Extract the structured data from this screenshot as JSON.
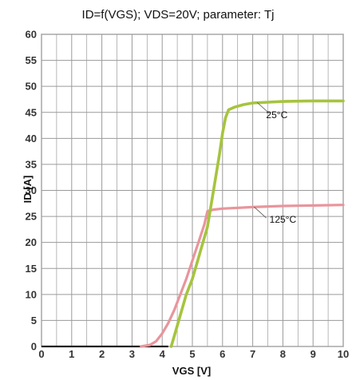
{
  "chart_data": {
    "type": "line",
    "title": "ID=f(VGS); VDS=20V; parameter: Tj",
    "xlabel": "VGS [V]",
    "ylabel": "ID [A]",
    "xlim": [
      0,
      10
    ],
    "ylim": [
      0,
      60
    ],
    "xticks": [
      "0",
      "1",
      "2",
      "3",
      "4",
      "5",
      "6",
      "7",
      "8",
      "9",
      "10"
    ],
    "yticks": [
      "0",
      "5",
      "10",
      "15",
      "20",
      "25",
      "30",
      "35",
      "40",
      "45",
      "50",
      "55",
      "60"
    ],
    "grid": true,
    "colors": {
      "tj_25": "#a6c43e",
      "tj_125": "#e8959c",
      "offstate": "#222222",
      "grid": "#9a9a9a"
    },
    "series": [
      {
        "name": "25°C",
        "x": [
          4.3,
          4.5,
          4.8,
          5.0,
          5.2,
          5.5,
          5.7,
          5.9,
          6.0,
          6.1,
          6.2,
          6.4,
          6.7,
          7.0,
          8.0,
          9.0,
          10.0
        ],
        "y": [
          0,
          4,
          10,
          13,
          17,
          23,
          30,
          37,
          41,
          44,
          45.5,
          46,
          46.5,
          46.8,
          47.1,
          47.2,
          47.2
        ]
      },
      {
        "name": "125°C",
        "x": [
          3.3,
          3.6,
          3.8,
          4.0,
          4.2,
          4.4,
          4.6,
          4.8,
          5.0,
          5.2,
          5.4,
          5.5,
          5.7,
          6.0,
          7.0,
          8.0,
          9.0,
          10.0
        ],
        "y": [
          0,
          0.3,
          1,
          2.5,
          4.5,
          7,
          10,
          13,
          16.5,
          20,
          23.5,
          26,
          26.3,
          26.5,
          26.8,
          27,
          27.1,
          27.2
        ]
      }
    ],
    "offstate": {
      "x": [
        0,
        4.2
      ],
      "y": [
        0,
        0
      ]
    }
  }
}
